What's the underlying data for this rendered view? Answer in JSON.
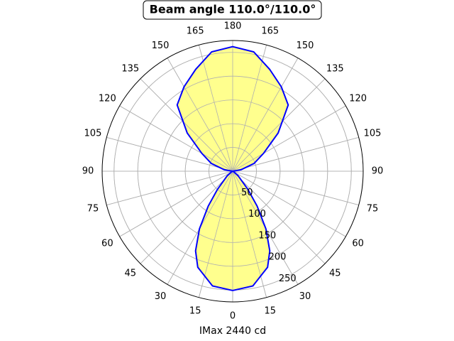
{
  "chart_data": {
    "type": "polar",
    "title": "Beam angle 110.0°/110.0°",
    "x_label": "IMax 2440 cd",
    "x": [
      0,
      10,
      20,
      25,
      30,
      35,
      40,
      50,
      60,
      70,
      80,
      90,
      100,
      110,
      120,
      130,
      140,
      150,
      160,
      170,
      180,
      190,
      200,
      210,
      220,
      230,
      240,
      250,
      260,
      270,
      280,
      290,
      300,
      310,
      320,
      325,
      330,
      335,
      340,
      350,
      360
    ],
    "series": [
      {
        "color": "#0000ff",
        "fill": "#ffff88",
        "values": [
          251,
          245,
          215,
          185,
          140,
          90,
          50,
          15,
          3,
          0,
          0,
          0,
          18,
          48,
          75,
          125,
          182,
          205,
          228,
          255,
          262,
          255,
          228,
          205,
          182,
          125,
          75,
          48,
          18,
          0,
          0,
          0,
          3,
          15,
          50,
          90,
          140,
          185,
          215,
          245,
          251
        ]
      }
    ],
    "xlim": [
      0,
      360
    ],
    "xticks": [
      0,
      15,
      30,
      45,
      60,
      75,
      90,
      105,
      120,
      135,
      150,
      165,
      180,
      {
        "value": 195,
        "label": "165"
      },
      {
        "value": 210,
        "label": "150"
      },
      {
        "value": 225,
        "label": "135"
      },
      {
        "value": 240,
        "label": "120"
      },
      {
        "value": 255,
        "label": "105"
      },
      {
        "value": 270,
        "label": "90"
      },
      {
        "value": 285,
        "label": "75"
      },
      {
        "value": 300,
        "label": "60"
      },
      {
        "value": 315,
        "label": "45"
      },
      {
        "value": 330,
        "label": "30"
      },
      {
        "value": 345,
        "label": "15"
      }
    ],
    "ylim": [
      0,
      275
    ],
    "yticks": [
      50,
      100,
      150,
      200,
      250
    ],
    "grid": true
  }
}
